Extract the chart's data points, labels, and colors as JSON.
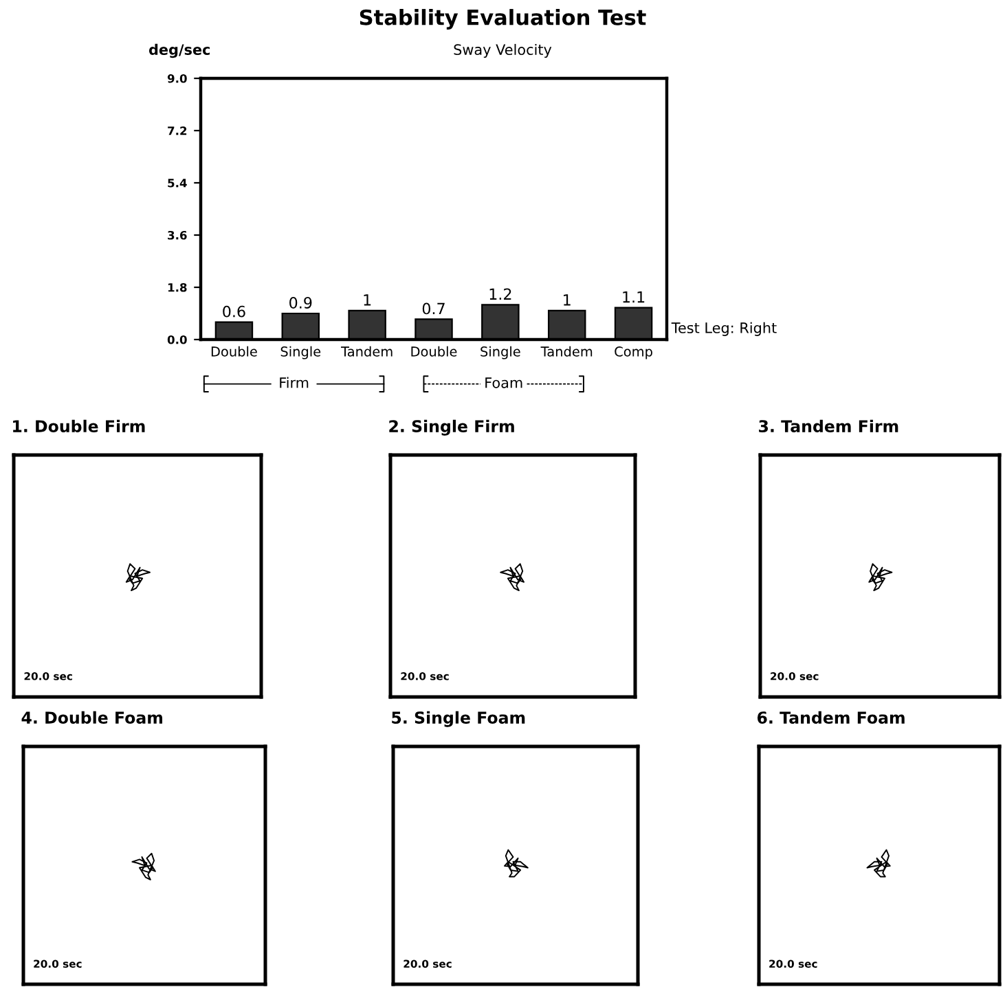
{
  "chart_data": [
    {
      "type": "bar",
      "title": "Stability Evaluation Test",
      "subtitle": "Sway Velocity",
      "ylabel": "deg/sec",
      "categories": [
        "Double",
        "Single",
        "Tandem",
        "Double",
        "Single",
        "Tandem",
        "Comp"
      ],
      "values": [
        0.6,
        0.9,
        1,
        0.7,
        1.2,
        1,
        1.1
      ],
      "color": "#333333",
      "ylim": [
        0,
        9
      ],
      "yticks": [
        {
          "value": 0,
          "label": "0.0"
        },
        1.8,
        3.6,
        5.4,
        7.2,
        {
          "value": 9,
          "label": "9.0"
        }
      ],
      "data_labels": true,
      "grid": false,
      "legend": false,
      "annotations": [
        "Test Leg: Right",
        "Firm",
        "Foam"
      ]
    },
    {
      "type": "other",
      "title": "1. Double Firm",
      "annotations": [
        "20.0 sec"
      ]
    },
    {
      "type": "other",
      "title": "2. Single Firm",
      "annotations": [
        "20.0 sec"
      ]
    },
    {
      "type": "other",
      "title": "3. Tandem Firm",
      "annotations": [
        "20.0 sec"
      ]
    },
    {
      "type": "other",
      "title": "4. Double Foam",
      "annotations": [
        "20.0 sec"
      ]
    },
    {
      "type": "other",
      "title": "5. Single Foam",
      "annotations": [
        "20.0 sec"
      ]
    },
    {
      "type": "other",
      "title": "6. Tandem Foam",
      "annotations": [
        "20.0 sec"
      ]
    }
  ]
}
